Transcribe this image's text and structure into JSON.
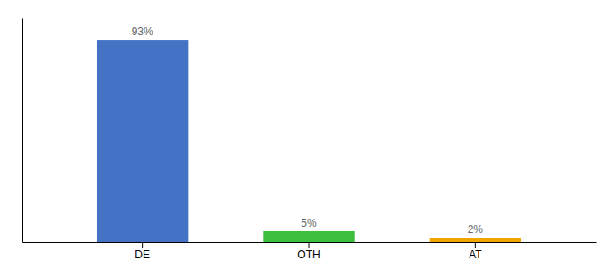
{
  "chart_data": {
    "type": "bar",
    "categories": [
      "DE",
      "OTH",
      "AT"
    ],
    "values": [
      93,
      5,
      2
    ],
    "value_labels": [
      "93%",
      "5%",
      "2%"
    ],
    "colors": [
      "#4472c4",
      "#3dbf3d",
      "#f0a500"
    ],
    "ylim": [
      0,
      103
    ],
    "data_labels": true,
    "grid": false,
    "tick_labels": "x"
  }
}
